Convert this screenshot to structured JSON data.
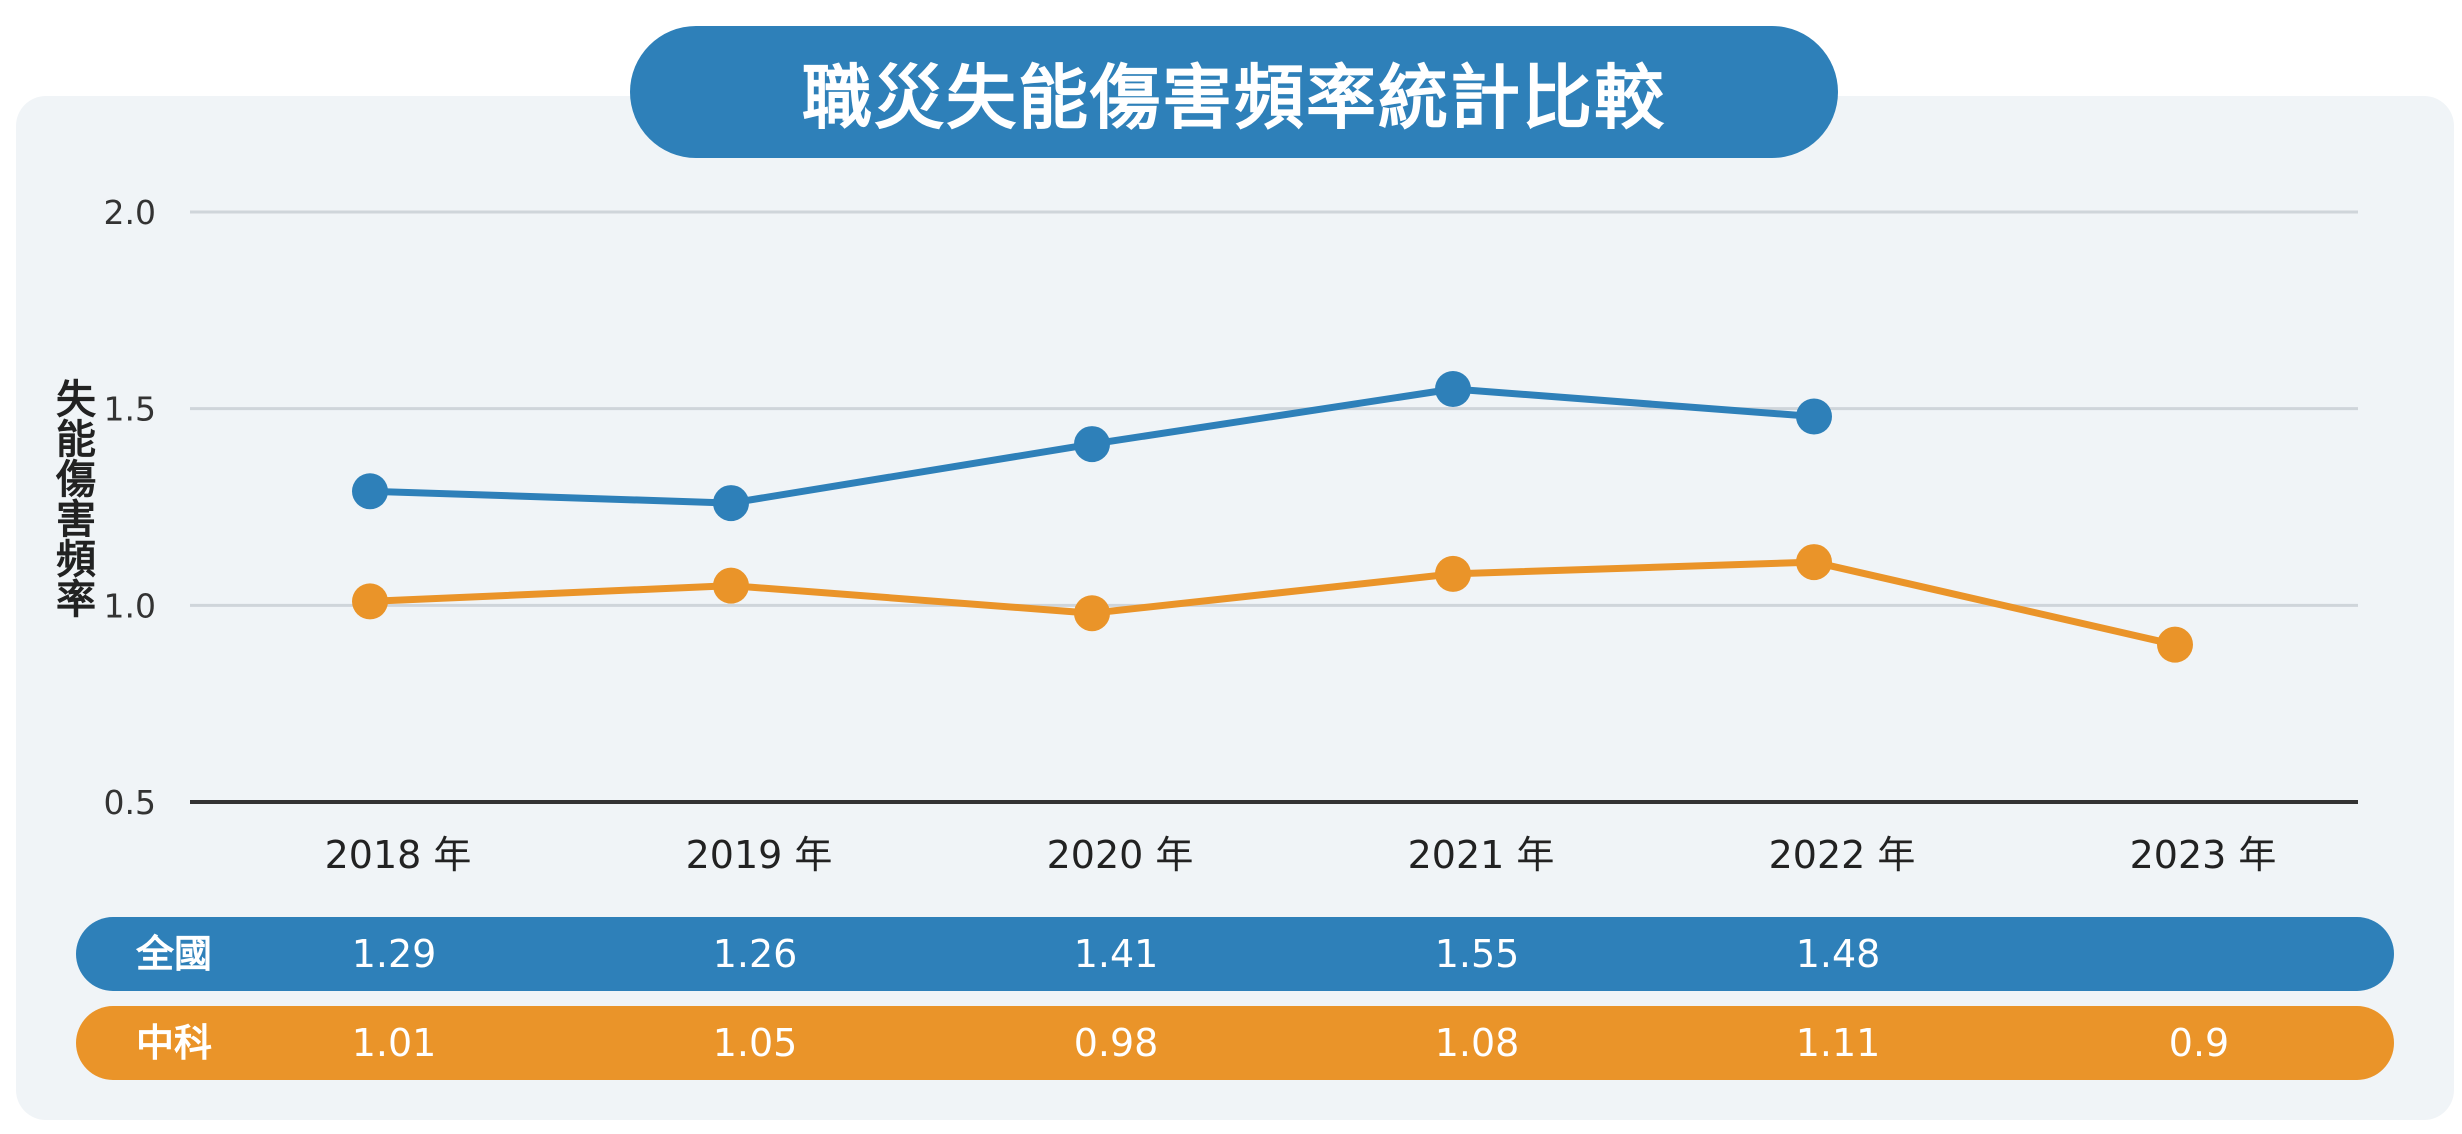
{
  "title": "職災失能傷害頻率統計比較",
  "colors": {
    "national": "#2e80b9",
    "central": "#ea9429",
    "panel": "#f0f4f7",
    "grid": "#cfd5da",
    "axis": "#333333"
  },
  "chart_data": {
    "type": "line",
    "title": "職災失能傷害頻率統計比較",
    "ylabel": "失能傷害頻率",
    "xlabel": "",
    "categories": [
      "2018 年",
      "2019 年",
      "2020 年",
      "2021 年",
      "2022 年",
      "2023 年"
    ],
    "ylim": [
      0.5,
      2.0
    ],
    "yticks": [
      "0.5",
      "1.0",
      "1.5",
      "2.0"
    ],
    "grid": true,
    "series": [
      {
        "name": "全國",
        "values": [
          1.29,
          1.26,
          1.41,
          1.55,
          1.48,
          null
        ]
      },
      {
        "name": "中科",
        "values": [
          1.01,
          1.05,
          0.98,
          1.08,
          1.11,
          0.9
        ]
      }
    ]
  },
  "table": {
    "rows": [
      {
        "name": "全國",
        "cells": [
          "1.29",
          "1.26",
          "1.41",
          "1.55",
          "1.48",
          ""
        ]
      },
      {
        "name": "中科",
        "cells": [
          "1.01",
          "1.05",
          "0.98",
          "1.08",
          "1.11",
          "0.9"
        ]
      }
    ]
  }
}
